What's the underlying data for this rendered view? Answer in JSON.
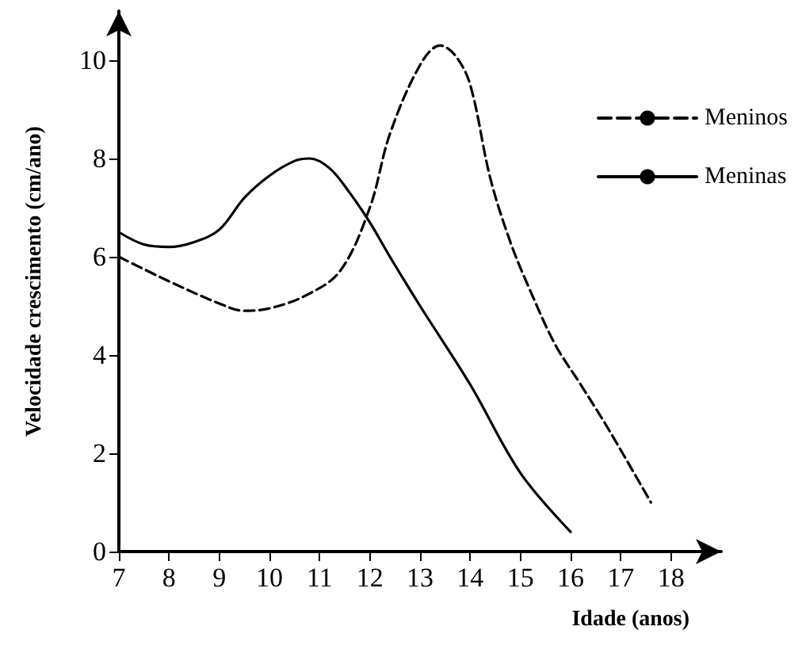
{
  "chart_data": {
    "type": "line",
    "xlabel": "Idade (anos)",
    "ylabel": "Velocidade crescimento (cm/ano)",
    "xlim": [
      7,
      19
    ],
    "xticks": [
      7,
      8,
      9,
      10,
      11,
      12,
      13,
      14,
      15,
      16,
      17,
      18
    ],
    "ylim": [
      0,
      11
    ],
    "yticks": [
      0,
      2,
      4,
      6,
      8,
      10
    ],
    "grid": false,
    "legend": "top right",
    "marker": "none",
    "series": [
      {
        "name": "Meninos",
        "color": "#000000",
        "line_style": "dashed",
        "x": [
          7,
          8,
          9,
          9.5,
          10,
          10.7,
          11.4,
          12,
          12.4,
          13,
          13.4,
          13.7,
          14,
          14.4,
          14.8,
          15.2,
          15.7,
          16.2,
          16.75,
          17.6
        ],
        "values": [
          6.0,
          5.5,
          5.05,
          4.9,
          4.95,
          5.2,
          5.7,
          7.0,
          8.5,
          9.9,
          10.3,
          10.1,
          9.5,
          7.6,
          6.3,
          5.3,
          4.2,
          3.4,
          2.5,
          1.0
        ]
      },
      {
        "name": "Meninas",
        "color": "#000000",
        "line_style": "solid",
        "x": [
          7,
          7.5,
          8,
          8.5,
          9,
          9.5,
          10,
          10.5,
          10.8,
          11.2,
          11.6,
          12,
          12.4,
          13,
          14,
          15,
          16
        ],
        "values": [
          6.5,
          6.25,
          6.2,
          6.3,
          6.55,
          7.2,
          7.65,
          7.95,
          8.0,
          7.8,
          7.3,
          6.7,
          6.0,
          5.0,
          3.4,
          1.6,
          0.4
        ]
      }
    ]
  }
}
